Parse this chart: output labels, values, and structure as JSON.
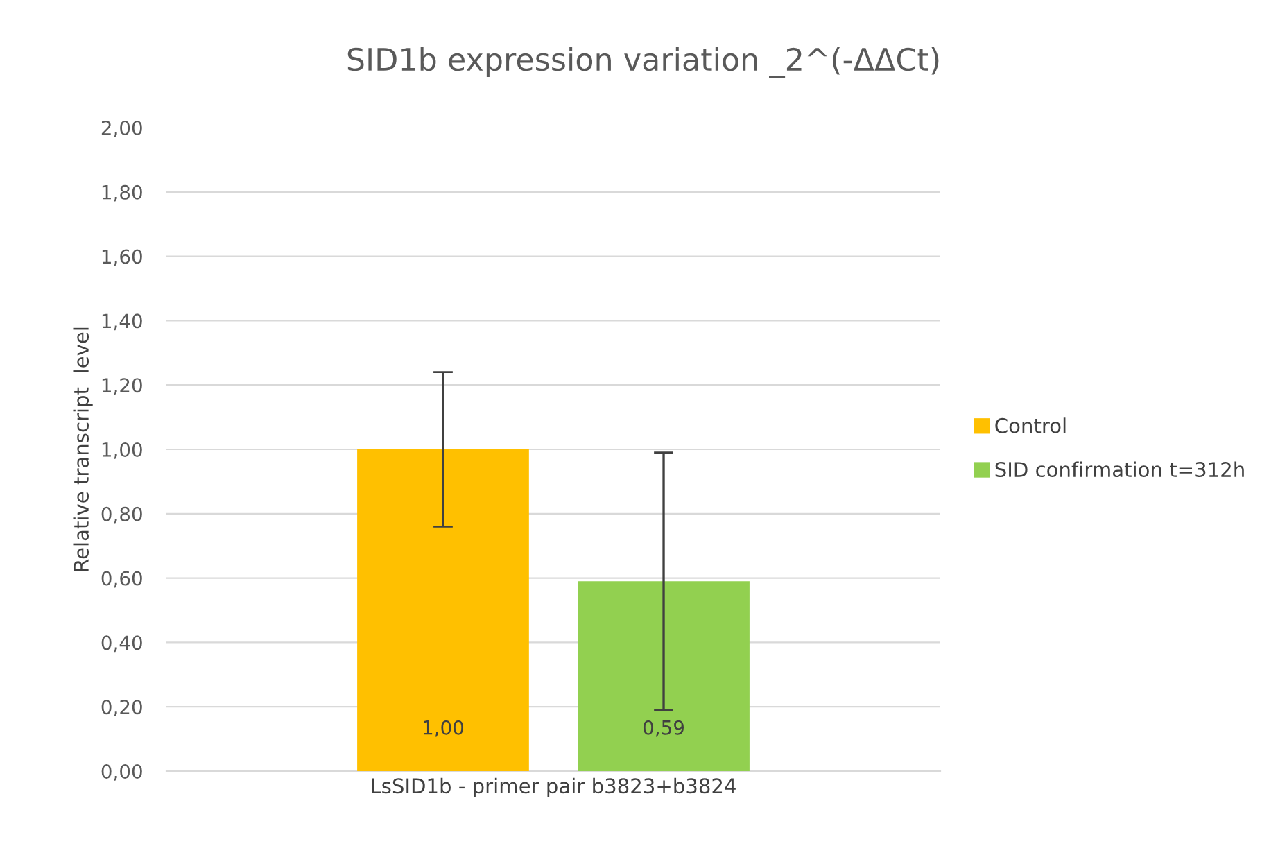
{
  "chart_data": {
    "type": "bar",
    "title": "SID1b expression variation _2^(-ΔΔCt)",
    "ylabel": "Relative transcript  level",
    "categories": [
      "LsSID1b - primer pair b3823+b3824"
    ],
    "series": [
      {
        "name": "Control",
        "color": "#ffc000",
        "values": [
          1.0
        ],
        "errors": [
          0.24
        ],
        "value_labels": [
          "1,00"
        ]
      },
      {
        "name": "SID confirmation t=312h",
        "color": "#92d050",
        "values": [
          0.59
        ],
        "errors": [
          0.4
        ],
        "value_labels": [
          "0,59"
        ]
      }
    ],
    "ylim": [
      0,
      2
    ],
    "yticks": [
      {
        "value": 0,
        "label": "0,00"
      },
      {
        "value": 0.2,
        "label": "0,20"
      },
      {
        "value": 0.4,
        "label": "0,40"
      },
      {
        "value": 0.6,
        "label": "0,60"
      },
      {
        "value": 0.8,
        "label": "0,80"
      },
      {
        "value": 1.0,
        "label": "1,00"
      },
      {
        "value": 1.2,
        "label": "1,20"
      },
      {
        "value": 1.4,
        "label": "1,40"
      },
      {
        "value": 1.6,
        "label": "1,60"
      },
      {
        "value": 1.8,
        "label": "1,80"
      },
      {
        "value": 2.0,
        "label": "2,00"
      }
    ],
    "grid": "y",
    "legend": "right"
  }
}
